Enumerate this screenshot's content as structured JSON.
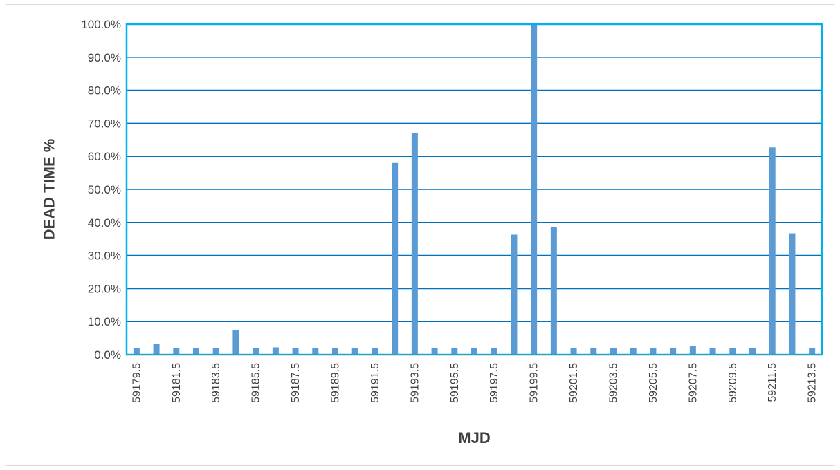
{
  "chart_data": {
    "type": "bar",
    "title": "",
    "xlabel": "MJD",
    "ylabel": "DEAD TIME %",
    "ylim": [
      0,
      100
    ],
    "y_ticks": [
      "0.0%",
      "10.0%",
      "20.0%",
      "30.0%",
      "40.0%",
      "50.0%",
      "60.0%",
      "70.0%",
      "80.0%",
      "90.0%",
      "100.0%"
    ],
    "x": [
      59179.5,
      59180.5,
      59181.5,
      59182.5,
      59183.5,
      59184.5,
      59185.5,
      59186.5,
      59187.5,
      59188.5,
      59189.5,
      59190.5,
      59191.5,
      59192.5,
      59193.5,
      59194.5,
      59195.5,
      59196.5,
      59197.5,
      59198.5,
      59199.5,
      59200.5,
      59201.5,
      59202.5,
      59203.5,
      59204.5,
      59205.5,
      59206.5,
      59207.5,
      59208.5,
      59209.5,
      59210.5,
      59211.5,
      59212.5,
      59213.5
    ],
    "x_tick_labels": [
      "59179.5",
      "59181.5",
      "59183.5",
      "59185.5",
      "59187.5",
      "59189.5",
      "59191.5",
      "59193.5",
      "59195.5",
      "59197.5",
      "59199.5",
      "59201.5",
      "59203.5",
      "59205.5",
      "59207.5",
      "59209.5",
      "59211.5",
      "59213.5"
    ],
    "values": [
      2.0,
      3.3,
      2.0,
      2.0,
      2.0,
      7.5,
      2.0,
      2.2,
      2.0,
      2.0,
      2.0,
      2.0,
      2.0,
      58.0,
      67.0,
      2.0,
      2.0,
      2.0,
      2.0,
      36.3,
      100.0,
      38.5,
      2.0,
      2.0,
      2.0,
      2.0,
      2.0,
      2.0,
      2.5,
      2.0,
      2.0,
      2.0,
      62.7,
      36.7,
      2.0
    ],
    "grid": true,
    "legend": "none",
    "colors": {
      "bar": "#5b9bd5",
      "grid": "#0070c0",
      "plot_border": "#00b0f0",
      "text": "#404040"
    }
  }
}
